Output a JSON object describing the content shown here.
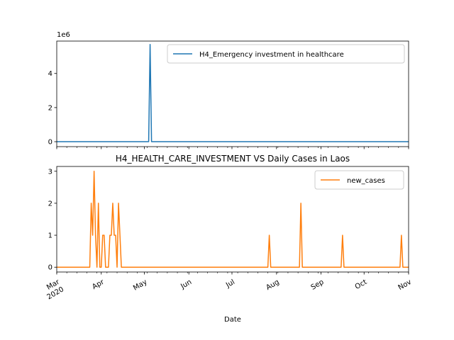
{
  "chart_data": [
    {
      "type": "line",
      "title": "",
      "offset_text": "1e6",
      "xlabel": "",
      "ylabel": "",
      "xlim": [
        "2020-03-01",
        "2020-11-01"
      ],
      "ylim": [
        -290000,
        5900000
      ],
      "yticks": [
        0,
        2000000,
        4000000
      ],
      "ytick_labels": [
        "0",
        "2",
        "4"
      ],
      "legend": "upper right",
      "colors": {
        "series": "#1f77b4"
      },
      "series": [
        {
          "name": "H4_Emergency investment in healthcare",
          "points": [
            [
              "2020-03-01",
              0
            ],
            [
              "2020-04-11",
              0
            ],
            [
              "2020-04-13",
              0
            ],
            [
              "2020-05-04",
              0
            ],
            [
              "2020-05-05",
              5700000
            ],
            [
              "2020-05-06",
              0
            ],
            [
              "2020-11-01",
              0
            ]
          ]
        }
      ]
    },
    {
      "type": "line",
      "title": "H4_HEALTH_CARE_INVESTMENT VS Daily Cases in Laos",
      "xlabel": "Date",
      "ylabel": "",
      "xlim": [
        "2020-03-01",
        "2020-11-01"
      ],
      "ylim": [
        -0.15,
        3.15
      ],
      "yticks": [
        0,
        1,
        2,
        3
      ],
      "ytick_labels": [
        "0",
        "1",
        "2",
        "3"
      ],
      "xtick_labels": [
        "Mar\n2020",
        "Apr",
        "May",
        "Jun",
        "Jul",
        "Aug",
        "Sep",
        "Oct",
        "Nov"
      ],
      "xtick_dates": [
        "2020-03-01",
        "2020-04-01",
        "2020-05-01",
        "2020-06-01",
        "2020-07-01",
        "2020-08-01",
        "2020-09-01",
        "2020-10-01",
        "2020-11-01"
      ],
      "legend": "upper right",
      "colors": {
        "series": "#ff7f0e"
      },
      "series": [
        {
          "name": "new_cases",
          "points": [
            [
              "2020-03-01",
              0
            ],
            [
              "2020-03-24",
              0
            ],
            [
              "2020-03-25",
              2
            ],
            [
              "2020-03-26",
              1
            ],
            [
              "2020-03-27",
              3
            ],
            [
              "2020-03-28",
              1
            ],
            [
              "2020-03-29",
              0
            ],
            [
              "2020-03-30",
              2
            ],
            [
              "2020-03-31",
              0
            ],
            [
              "2020-04-01",
              0
            ],
            [
              "2020-04-02",
              1
            ],
            [
              "2020-04-03",
              1
            ],
            [
              "2020-04-04",
              0
            ],
            [
              "2020-04-05",
              0
            ],
            [
              "2020-04-06",
              0
            ],
            [
              "2020-04-07",
              1
            ],
            [
              "2020-04-08",
              1
            ],
            [
              "2020-04-09",
              2
            ],
            [
              "2020-04-10",
              1
            ],
            [
              "2020-04-11",
              1
            ],
            [
              "2020-04-12",
              0
            ],
            [
              "2020-04-13",
              2
            ],
            [
              "2020-04-14",
              1
            ],
            [
              "2020-04-15",
              0
            ],
            [
              "2020-07-26",
              0
            ],
            [
              "2020-07-27",
              1
            ],
            [
              "2020-07-28",
              0
            ],
            [
              "2020-08-17",
              0
            ],
            [
              "2020-08-18",
              2
            ],
            [
              "2020-08-19",
              0
            ],
            [
              "2020-09-15",
              0
            ],
            [
              "2020-09-16",
              1
            ],
            [
              "2020-09-17",
              0
            ],
            [
              "2020-10-26",
              0
            ],
            [
              "2020-10-27",
              1
            ],
            [
              "2020-10-28",
              0
            ],
            [
              "2020-11-01",
              0
            ]
          ]
        }
      ]
    }
  ]
}
